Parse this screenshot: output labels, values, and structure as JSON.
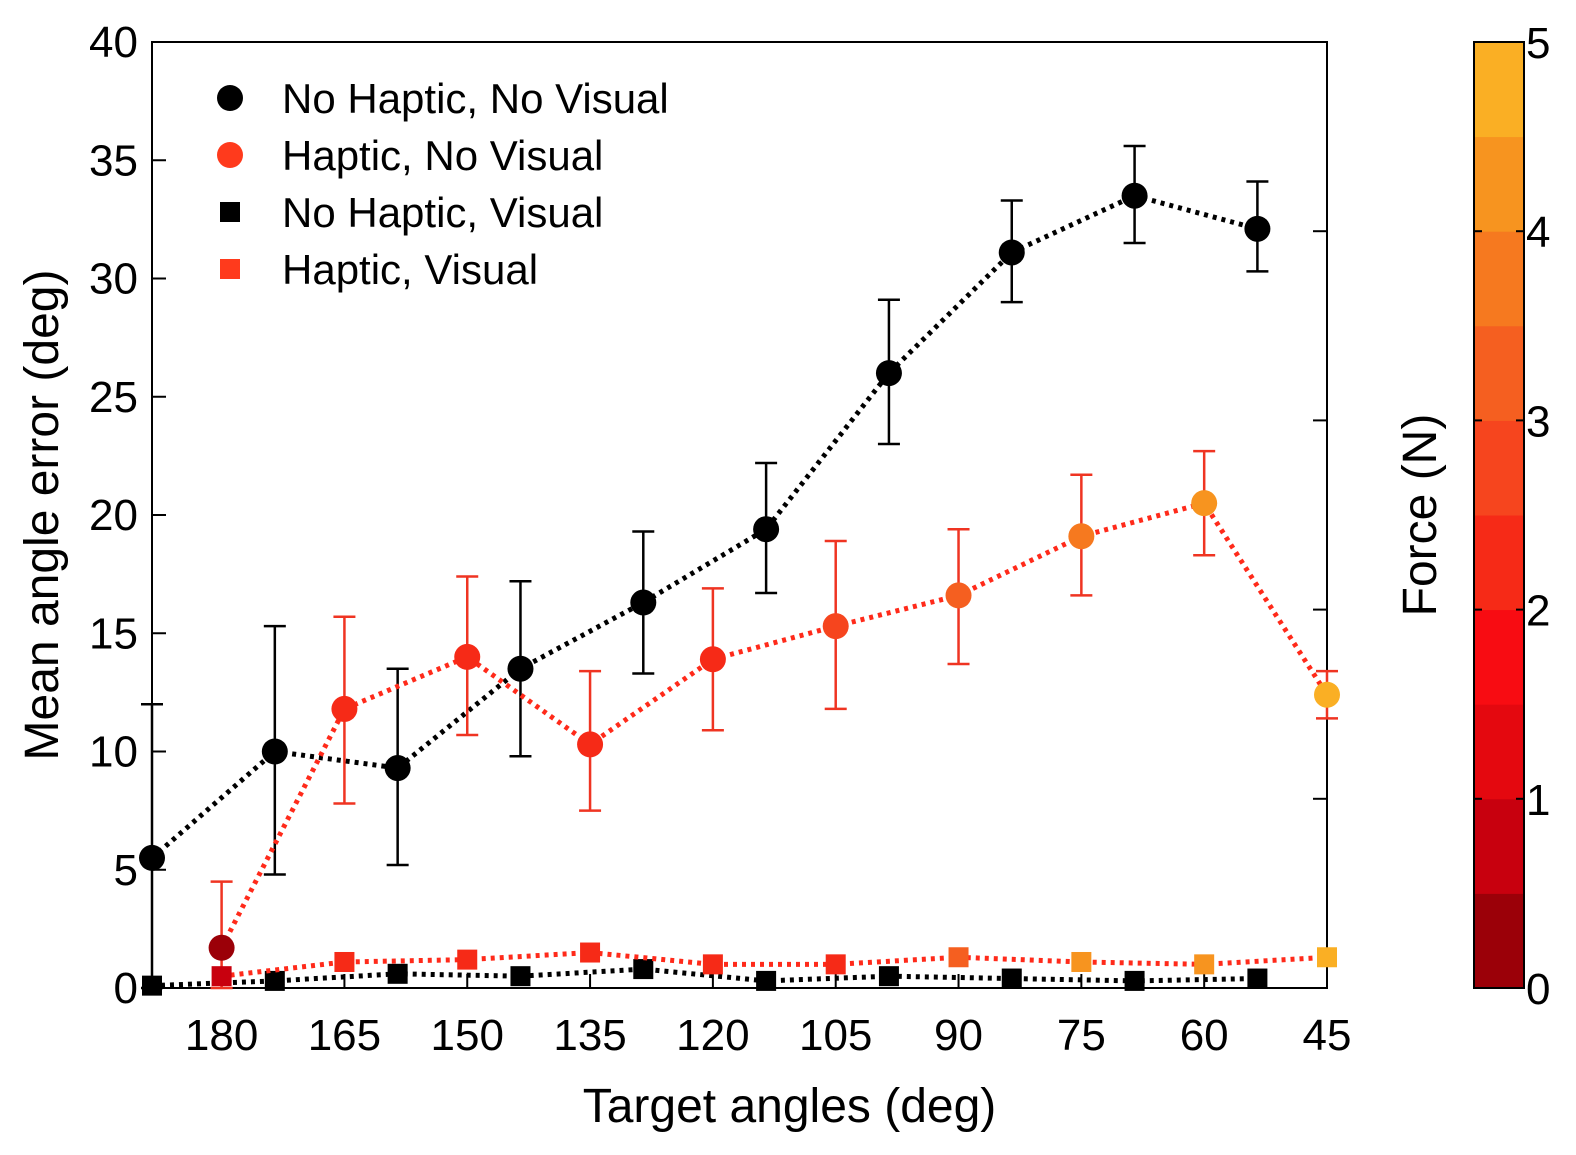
{
  "chart_data": {
    "type": "scatter",
    "xlabel": "Target angles (deg)",
    "ylabel": "Mean angle error (deg)",
    "x_reversed": true,
    "xlim": [
      188.5,
      45
    ],
    "ylim": [
      0,
      40
    ],
    "x_ticks": [
      180,
      165,
      150,
      135,
      120,
      105,
      90,
      75,
      60,
      45
    ],
    "y_ticks": [
      0,
      5,
      10,
      15,
      20,
      25,
      30,
      35,
      40
    ],
    "grid": false,
    "legend_position": "top-left",
    "series": [
      {
        "name": "No Haptic, No Visual",
        "marker": "circle",
        "color": "#000000",
        "line_style": "dotted",
        "x": [
          188.5,
          173.5,
          158.5,
          143.5,
          128.5,
          113.5,
          98.5,
          83.5,
          68.5,
          53.5
        ],
        "y": [
          5.5,
          10.0,
          9.3,
          13.5,
          16.3,
          19.4,
          26.0,
          31.1,
          33.5,
          32.1
        ],
        "err_low": [
          0.0,
          4.8,
          5.2,
          9.8,
          13.3,
          16.7,
          23.0,
          29.0,
          31.5,
          30.3
        ],
        "err_high": [
          12.0,
          15.3,
          13.5,
          17.2,
          19.3,
          22.2,
          29.1,
          33.3,
          35.6,
          34.1
        ]
      },
      {
        "name": "Haptic, No Visual",
        "marker": "circle",
        "color": "#ff2a1a",
        "line_style": "dotted",
        "x": [
          180,
          165,
          150,
          135,
          120,
          105,
          90,
          75,
          60,
          45
        ],
        "y": [
          1.7,
          11.8,
          14.0,
          10.3,
          13.9,
          15.3,
          16.6,
          19.1,
          20.5,
          12.4
        ],
        "err_low": [
          0.0,
          7.8,
          10.7,
          7.5,
          10.9,
          11.8,
          13.7,
          16.6,
          18.3,
          11.4
        ],
        "err_high": [
          4.5,
          15.7,
          17.4,
          13.4,
          16.9,
          18.9,
          19.4,
          21.7,
          22.7,
          13.4
        ],
        "force": [
          0.2,
          2.3,
          2.2,
          2.2,
          2.3,
          2.8,
          3.2,
          3.9,
          4.2,
          4.6
        ]
      },
      {
        "name": "No Haptic, Visual",
        "marker": "square",
        "color": "#000000",
        "line_style": "dotted",
        "x": [
          188.5,
          173.5,
          158.5,
          143.5,
          128.5,
          113.5,
          98.5,
          83.5,
          68.5,
          53.5
        ],
        "y": [
          0.1,
          0.3,
          0.6,
          0.5,
          0.8,
          0.3,
          0.5,
          0.4,
          0.3,
          0.4
        ]
      },
      {
        "name": "Haptic, Visual",
        "marker": "square",
        "color": "#ff2a1a",
        "line_style": "dotted",
        "x": [
          180,
          165,
          150,
          135,
          120,
          105,
          90,
          75,
          60,
          45
        ],
        "y": [
          0.5,
          1.1,
          1.2,
          1.5,
          1.0,
          1.0,
          1.3,
          1.1,
          1.0,
          1.3
        ],
        "force": [
          0.8,
          2.0,
          2.0,
          2.0,
          2.0,
          2.4,
          3.4,
          4.4,
          4.4,
          4.9
        ]
      }
    ],
    "colorbar": {
      "label": "Force (N)",
      "range": [
        0,
        5
      ],
      "ticks": [
        0,
        1,
        2,
        3,
        4,
        5
      ],
      "colors": [
        "#9b0008",
        "#c8000e",
        "#e4080f",
        "#f80c12",
        "#f62a17",
        "#f6451e",
        "#f55f20",
        "#f6791f",
        "#f7941f",
        "#faaf24"
      ]
    }
  }
}
